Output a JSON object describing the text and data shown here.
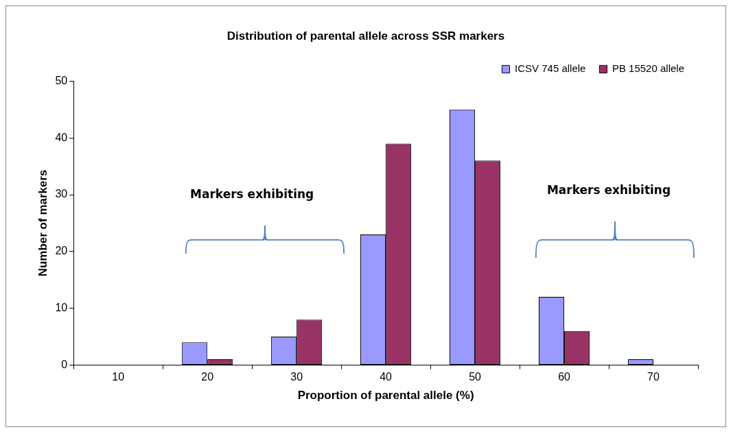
{
  "chart_data": {
    "type": "bar",
    "title": "Distribution of parental allele across SSR markers",
    "xlabel": "Proportion of parental allele (%)",
    "ylabel": "Number of markers",
    "categories": [
      "10",
      "20",
      "30",
      "40",
      "50",
      "60",
      "70"
    ],
    "series": [
      {
        "name": "ICSV 745 allele",
        "color": "#9999ff",
        "values": [
          0,
          4,
          5,
          23,
          45,
          12,
          1
        ]
      },
      {
        "name": "PB 15520 allele",
        "color": "#993366",
        "values": [
          0,
          1,
          8,
          39,
          36,
          6,
          0
        ]
      }
    ],
    "ylim": [
      0,
      50
    ],
    "yticks": [
      0,
      10,
      20,
      30,
      40,
      50
    ],
    "grid": false,
    "legend": "top right",
    "annotations": [
      "Markers exhibiting",
      "Markers exhibiting"
    ]
  }
}
